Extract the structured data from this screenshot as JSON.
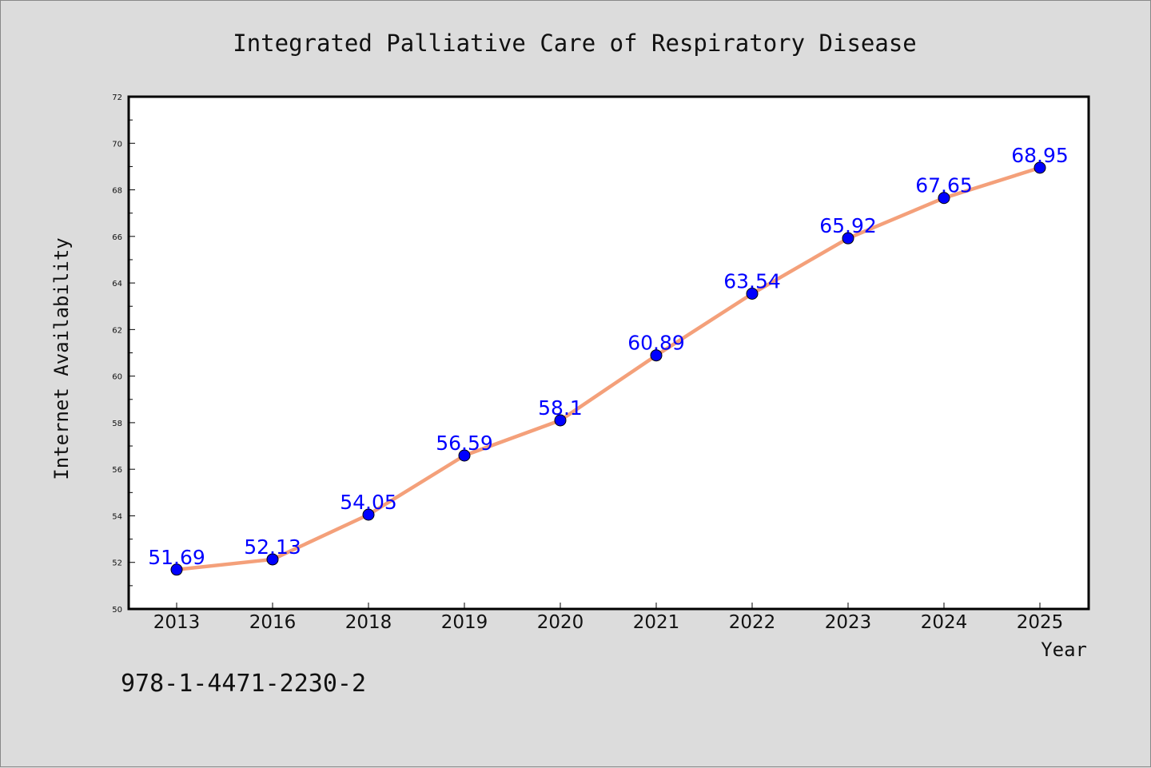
{
  "chart_data": {
    "type": "line",
    "title": "Integrated Palliative Care of Respiratory Disease",
    "xlabel": "Year",
    "ylabel": "Internet Availability",
    "categories": [
      "2013",
      "2016",
      "2018",
      "2019",
      "2020",
      "2021",
      "2022",
      "2023",
      "2024",
      "2025"
    ],
    "series": [
      {
        "values": [
          51.69,
          52.13,
          54.05,
          56.59,
          58.1,
          60.89,
          63.54,
          65.92,
          67.65,
          68.95
        ],
        "labels": [
          "51.69",
          "52.13",
          "54.05",
          "56.59",
          "58.1",
          "60.89",
          "63.54",
          "65.92",
          "67.65",
          "68.95"
        ],
        "line_color": "#f4a07a",
        "marker_color": "#0000ff"
      }
    ],
    "ylim": [
      50,
      72
    ],
    "yticks": [
      "50",
      "52",
      "54",
      "56",
      "58",
      "60",
      "62",
      "64",
      "66",
      "68",
      "70",
      "72"
    ],
    "grid": false,
    "legend": "none"
  },
  "footer": {
    "isbn": "978-1-4471-2230-2"
  }
}
